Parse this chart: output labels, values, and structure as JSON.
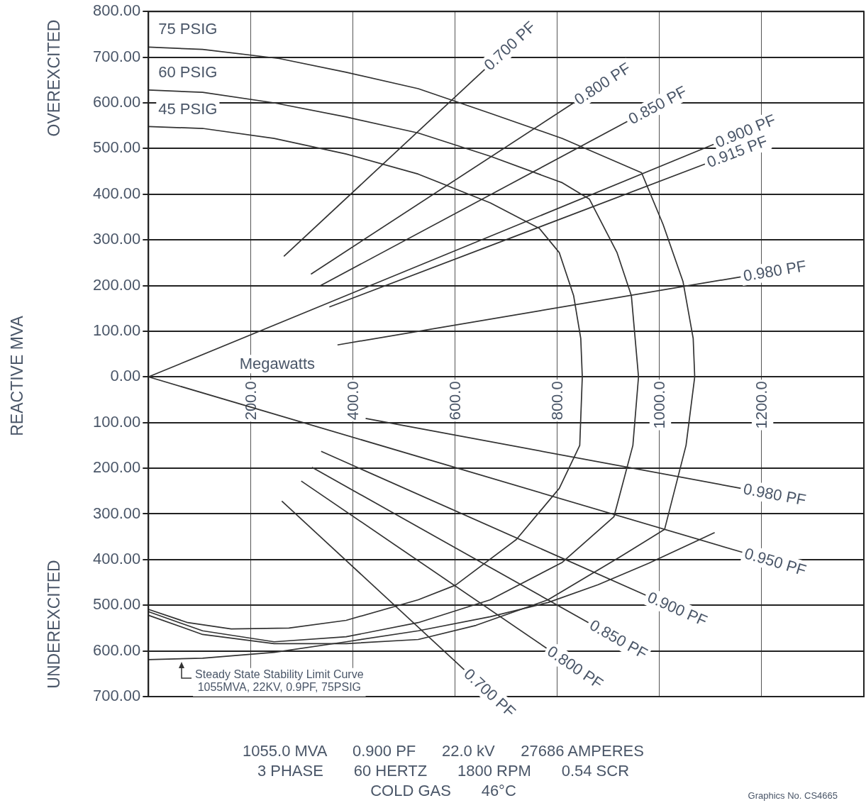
{
  "chart_data": {
    "type": "line",
    "xlabel": "Megawatts",
    "ylabel": "REACTIVE MVA",
    "xlim": [
      0,
      1400
    ],
    "ylim": [
      -700,
      800
    ],
    "xticks": [
      {
        "value": 200,
        "label": "200.0"
      },
      {
        "value": 400,
        "label": "400.0"
      },
      {
        "value": 600,
        "label": "600.0"
      },
      {
        "value": 800,
        "label": "800.0"
      },
      {
        "value": 1000,
        "label": "1000.0"
      },
      {
        "value": 1200,
        "label": "1200.0"
      }
    ],
    "yticks": [
      {
        "value": 800,
        "label": "800.00"
      },
      {
        "value": 700,
        "label": "700.00"
      },
      {
        "value": 600,
        "label": "600.00"
      },
      {
        "value": 500,
        "label": "500.00"
      },
      {
        "value": 400,
        "label": "400.00"
      },
      {
        "value": 300,
        "label": "300.00"
      },
      {
        "value": 200,
        "label": "200.00"
      },
      {
        "value": 100,
        "label": "100.00"
      },
      {
        "value": 0,
        "label": "0.00"
      },
      {
        "value": -100,
        "label": "100.00"
      },
      {
        "value": -200,
        "label": "200.00"
      },
      {
        "value": -300,
        "label": "300.00"
      },
      {
        "value": -400,
        "label": "400.00"
      },
      {
        "value": -500,
        "label": "500.00"
      },
      {
        "value": -600,
        "label": "600.00"
      },
      {
        "value": -700,
        "label": "700.00"
      }
    ],
    "grid": true,
    "marker": "none",
    "series": [
      {
        "name": "75 PSIG",
        "color": "#333333",
        "x": [
          0,
          106,
          256,
          387,
          528,
          669,
          810,
          965,
          1007,
          1046,
          1066,
          1069,
          1052,
          1010,
          923,
          782,
          641,
          528,
          387,
          246,
          106,
          0
        ],
        "values": [
          722,
          717,
          697,
          667,
          631,
          577,
          522,
          447,
          334,
          209,
          84,
          0,
          -150,
          -334,
          -394,
          -488,
          -544,
          -575,
          -584,
          -584,
          -564,
          -522
        ]
      },
      {
        "name": "60 PSIG",
        "color": "#333333",
        "x": [
          0,
          106,
          246,
          387,
          528,
          669,
          810,
          863,
          917,
          945,
          959,
          948,
          911,
          810,
          669,
          528,
          387,
          246,
          106,
          0
        ],
        "values": [
          628,
          623,
          600,
          569,
          534,
          483,
          425,
          389,
          272,
          178,
          0,
          -150,
          -306,
          -406,
          -488,
          -538,
          -569,
          -580,
          -556,
          -514
        ]
      },
      {
        "name": "45 PSIG",
        "color": "#333333",
        "x": [
          0,
          106,
          246,
          387,
          528,
          669,
          765,
          804,
          832,
          846,
          849,
          844,
          804,
          720,
          601,
          528,
          387,
          275,
          162,
          77,
          0
        ],
        "values": [
          548,
          544,
          522,
          488,
          444,
          381,
          325,
          272,
          178,
          84,
          0,
          -150,
          -244,
          -356,
          -456,
          -488,
          -533,
          -550,
          -552,
          -538,
          -509
        ]
      },
      {
        "color": "#333333",
        "x": [
          0,
          106,
          246,
          387,
          528,
          669,
          782,
          880,
          979,
          1108
        ],
        "values": [
          -619,
          -616,
          -603,
          -580,
          -556,
          -525,
          -494,
          -455,
          -408,
          -341
        ]
      },
      {
        "name": "0.700 PF",
        "color": "#333333",
        "x": [
          265,
          658
        ],
        "values": [
          264,
          673
        ]
      },
      {
        "name": "0.800 PF",
        "color": "#333333",
        "x": [
          318,
          832
        ],
        "values": [
          225,
          600
        ]
      },
      {
        "name": "0.850 PF",
        "color": "#333333",
        "x": [
          337,
          937
        ],
        "values": [
          200,
          559
        ]
      },
      {
        "name": "0.900 PF",
        "color": "#333333",
        "x": [
          0,
          1106
        ],
        "values": [
          0,
          509
        ]
      },
      {
        "name": "0.915 PF",
        "color": "#333333",
        "x": [
          354,
          1089
        ],
        "values": [
          153,
          466
        ]
      },
      {
        "name": "0.980 PF",
        "color": "#333333",
        "x": [
          370,
          1159
        ],
        "values": [
          70,
          219
        ]
      },
      {
        "name": "0.980 PF",
        "color": "#333333",
        "x": [
          425,
          1159
        ],
        "values": [
          -91,
          -244
        ]
      },
      {
        "name": "0.950 PF",
        "color": "#333333",
        "x": [
          0,
          1162
        ],
        "values": [
          0,
          -384
        ]
      },
      {
        "name": "0.900 PF",
        "color": "#333333",
        "x": [
          338,
          973
        ],
        "values": [
          -163,
          -478
        ]
      },
      {
        "name": "0.850 PF",
        "color": "#333333",
        "x": [
          320,
          861
        ],
        "values": [
          -198,
          -538
        ]
      },
      {
        "name": "0.800 PF",
        "color": "#333333",
        "x": [
          299,
          779
        ],
        "values": [
          -228,
          -594
        ]
      },
      {
        "name": "0.700 PF",
        "color": "#333333",
        "x": [
          261,
          618
        ],
        "values": [
          -272,
          -641
        ]
      }
    ],
    "annotations": [
      "OVEREXCITED",
      "UNDEREXCITED",
      {
        "text": "Steady State Stability Limit Curve\n1055MVA, 22KV, 0.9PF, 75PSIG",
        "x": 65,
        "y": -625
      },
      "1055.0 MVA      0.900 PF      22.0 kV      27686 AMPERES",
      "3 PHASE       60 HERTZ       1800 RPM       0.54 SCR",
      "COLD GAS       46°C",
      "Graphics No. CS4665"
    ]
  }
}
